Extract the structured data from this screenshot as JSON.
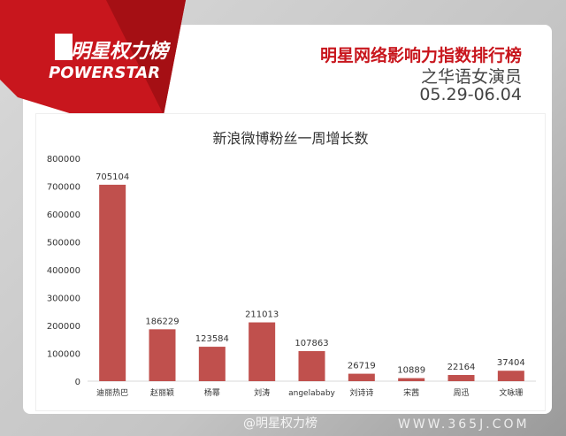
{
  "header": {
    "logo_cn": "明星权力榜",
    "logo_en": "POWERSTAR",
    "title": "明星网络影响力指数排行榜",
    "subtitle": "之华语女演员",
    "date_range": "05.29-06.04"
  },
  "watermark": {
    "weibo": "@明星权力榜",
    "site": "WWW.365J.COM"
  },
  "colors": {
    "bar": "#c0504d",
    "brand": "#c8161d"
  },
  "chart_data": {
    "type": "bar",
    "title": "新浪微博粉丝一周增长数",
    "xlabel": "",
    "ylabel": "",
    "categories": [
      "迪丽热巴",
      "赵丽颖",
      "杨幂",
      "刘涛",
      "angelababy",
      "刘诗诗",
      "宋茜",
      "周迅",
      "文咏珊"
    ],
    "values": [
      705104,
      186229,
      123584,
      211013,
      107863,
      26719,
      10889,
      22164,
      37404
    ],
    "ylim": [
      0,
      800000
    ],
    "yticks": [
      "0",
      "100000",
      "200000",
      "300000",
      "400000",
      "500000",
      "600000",
      "700000",
      "800000"
    ],
    "grid": false,
    "legend": "none"
  }
}
